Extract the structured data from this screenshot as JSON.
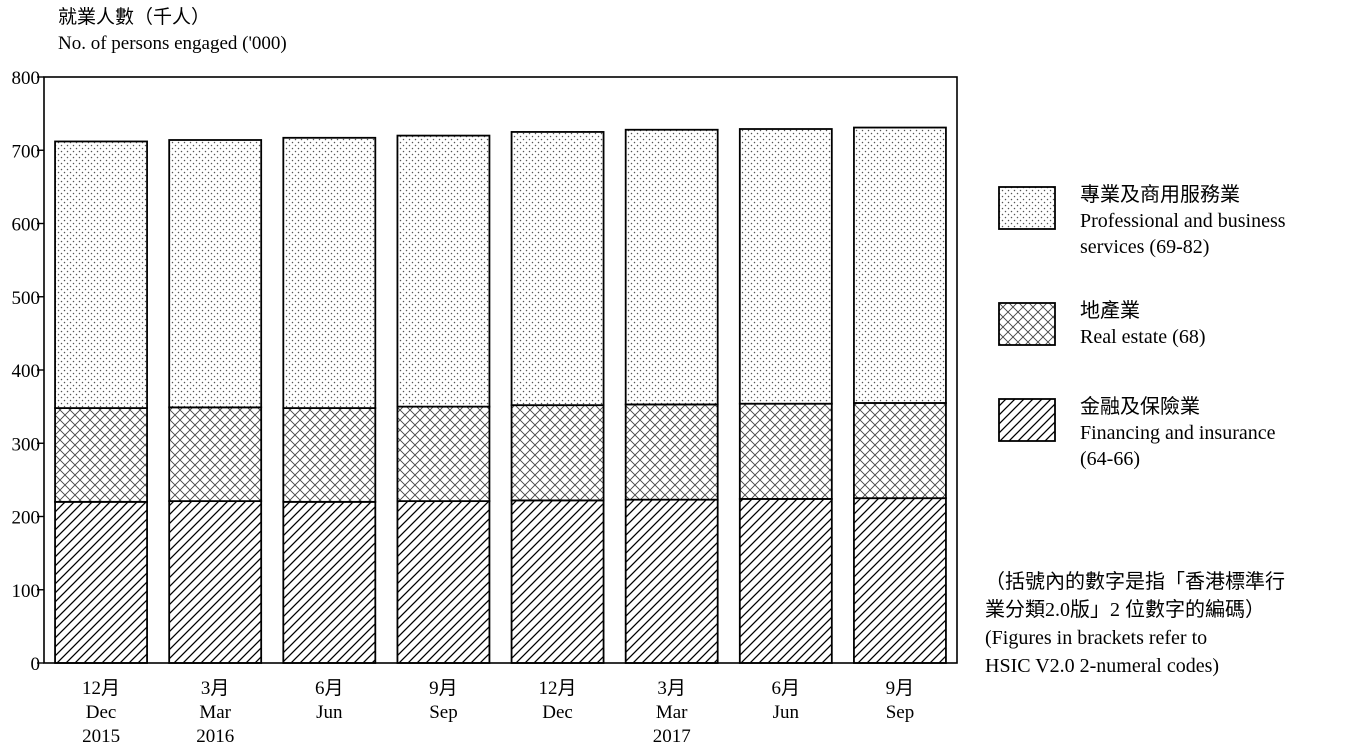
{
  "chart_data": {
    "type": "bar",
    "stacked": true,
    "ylabel_zh": "就業人數（千人）",
    "ylabel_en": "No. of persons engaged ('000)",
    "ylim": [
      0,
      800
    ],
    "yticks": [
      0,
      100,
      200,
      300,
      400,
      500,
      600,
      700,
      800
    ],
    "categories": [
      {
        "month_zh": "12月",
        "month_en": "Dec",
        "year": "2015"
      },
      {
        "month_zh": "3月",
        "month_en": "Mar",
        "year": "2016"
      },
      {
        "month_zh": "6月",
        "month_en": "Jun",
        "year": ""
      },
      {
        "month_zh": "9月",
        "month_en": "Sep",
        "year": ""
      },
      {
        "month_zh": "12月",
        "month_en": "Dec",
        "year": ""
      },
      {
        "month_zh": "3月",
        "month_en": "Mar",
        "year": "2017"
      },
      {
        "month_zh": "6月",
        "month_en": "Jun",
        "year": ""
      },
      {
        "month_zh": "9月",
        "month_en": "Sep",
        "year": ""
      }
    ],
    "series": [
      {
        "name_zh": "金融及保險業",
        "name_en": "Financing and insurance",
        "code": "(64-66)",
        "pattern": "hatch",
        "values": [
          220,
          221,
          220,
          221,
          222,
          223,
          224,
          225
        ]
      },
      {
        "name_zh": "地產業",
        "name_en": "Real estate (68)",
        "code": "",
        "pattern": "crosshatch",
        "values": [
          128,
          128,
          128,
          129,
          130,
          130,
          130,
          130
        ]
      },
      {
        "name_zh": "專業及商用服務業",
        "name_en": "Professional and business",
        "code": "services (69-82)",
        "pattern": "dots",
        "values": [
          364,
          365,
          369,
          370,
          373,
          375,
          375,
          376
        ]
      }
    ],
    "legend_position": "right",
    "grid": false
  },
  "footnote": {
    "zh_line1": "（括號內的數字是指「香港標準行",
    "zh_line2": "業分類2.0版」2 位數字的編碼）",
    "en_line1": "(Figures in brackets refer to",
    "en_line2": "HSIC V2.0 2-numeral codes)"
  }
}
